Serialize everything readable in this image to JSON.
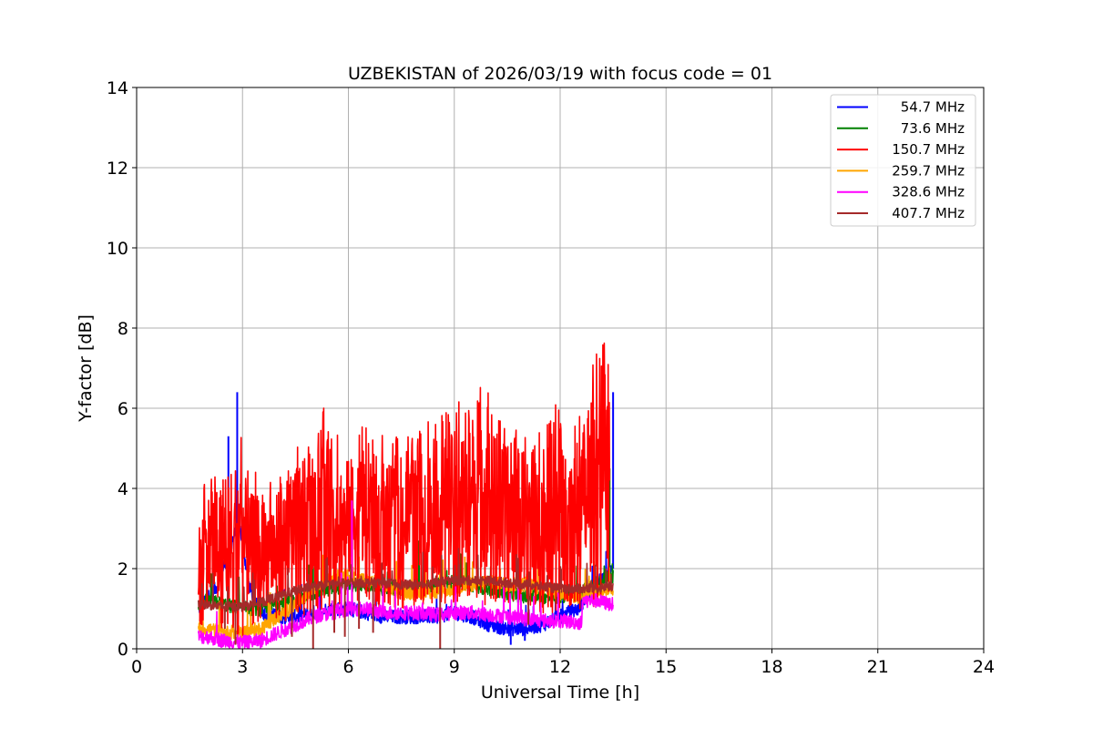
{
  "chart_data": {
    "type": "line",
    "title": "UZBEKISTAN of 2026/03/19 with focus code = 01",
    "xlabel": "Universal Time [h]",
    "ylabel": "Y-factor [dB]",
    "xlim": [
      0,
      24
    ],
    "ylim": [
      0,
      14
    ],
    "xticks": [
      0,
      3,
      6,
      9,
      12,
      15,
      18,
      21,
      24
    ],
    "yticks": [
      0,
      2,
      4,
      6,
      8,
      10,
      12,
      14
    ],
    "grid": true,
    "legend_position": "top-right",
    "series": [
      {
        "name": "54.7 MHz",
        "color": "#0000ff",
        "x": [
          1.75,
          2.0,
          2.3,
          2.6,
          2.9,
          3.2,
          3.6,
          4.0,
          4.5,
          5.0,
          5.5,
          6.0,
          6.5,
          7.0,
          7.5,
          8.0,
          8.5,
          9.0,
          9.5,
          10.0,
          10.5,
          11.0,
          11.5,
          12.0,
          12.5,
          13.0,
          13.5
        ],
        "y": [
          1.0,
          1.2,
          1.6,
          2.4,
          3.2,
          1.5,
          0.9,
          0.8,
          0.8,
          0.9,
          1.0,
          1.0,
          0.9,
          0.8,
          0.8,
          0.8,
          0.8,
          0.9,
          0.8,
          0.6,
          0.5,
          0.5,
          0.6,
          0.8,
          1.0,
          1.6,
          2.0
        ],
        "peaks": [
          [
            2.85,
            6.4
          ],
          [
            2.6,
            5.3
          ],
          [
            2.0,
            2.3
          ],
          [
            13.5,
            6.4
          ],
          [
            5.6,
            2.2
          ]
        ],
        "dips": [
          [
            10.6,
            0.1
          ],
          [
            11.0,
            0.2
          ]
        ]
      },
      {
        "name": "73.6 MHz",
        "color": "#008000",
        "x": [
          1.75,
          2.0,
          2.5,
          3.0,
          3.5,
          4.0,
          4.5,
          5.0,
          5.5,
          6.0,
          6.5,
          7.0,
          7.5,
          8.0,
          8.5,
          9.0,
          9.5,
          10.0,
          10.5,
          11.0,
          11.5,
          12.0,
          12.5,
          13.0,
          13.5
        ],
        "y": [
          1.1,
          1.2,
          1.1,
          1.0,
          1.0,
          1.1,
          1.2,
          1.4,
          1.5,
          1.6,
          1.6,
          1.5,
          1.5,
          1.5,
          1.6,
          1.7,
          1.6,
          1.5,
          1.4,
          1.3,
          1.3,
          1.3,
          1.4,
          1.6,
          1.8
        ],
        "peaks": [
          [
            2.0,
            2.2
          ],
          [
            5.0,
            2.6
          ],
          [
            8.0,
            2.7
          ],
          [
            9.0,
            2.6
          ],
          [
            13.4,
            4.5
          ]
        ],
        "dips": [
          [
            2.8,
            0.4
          ]
        ]
      },
      {
        "name": "150.7 MHz",
        "color": "#ff0000",
        "x": [
          1.75,
          2.0,
          2.3,
          2.6,
          2.9,
          3.2,
          3.5,
          3.8,
          4.1,
          4.4,
          4.7,
          5.0,
          5.3,
          5.6,
          5.9,
          6.2,
          6.5,
          6.8,
          7.1,
          7.4,
          7.7,
          8.0,
          8.3,
          8.6,
          8.9,
          9.2,
          9.5,
          9.8,
          10.1,
          10.4,
          10.7,
          11.0,
          11.3,
          11.6,
          11.9,
          12.2,
          12.5,
          12.8,
          13.1,
          13.4
        ],
        "y": [
          1.2,
          1.6,
          2.3,
          2.6,
          2.8,
          2.6,
          2.4,
          2.2,
          2.2,
          2.3,
          2.4,
          2.6,
          2.8,
          3.0,
          2.9,
          2.9,
          3.0,
          3.0,
          2.8,
          2.7,
          2.7,
          2.8,
          2.9,
          3.0,
          3.1,
          3.2,
          3.2,
          3.1,
          3.0,
          2.9,
          2.9,
          2.8,
          2.8,
          2.8,
          2.9,
          3.0,
          3.1,
          3.3,
          3.4,
          3.6
        ],
        "upper_envelope": [
          3.4,
          4.5,
          4.6,
          4.9,
          5.7,
          4.5,
          4.4,
          4.3,
          4.6,
          4.8,
          5.7,
          4.9,
          6.3,
          5.4,
          5.3,
          5.5,
          5.7,
          5.5,
          5.2,
          5.3,
          5.4,
          5.5,
          5.8,
          6.0,
          6.1,
          6.4,
          6.2,
          7.0,
          6.2,
          5.7,
          5.8,
          5.6,
          5.4,
          5.6,
          6.2,
          5.3,
          6.2,
          6.4,
          8.0,
          7.3
        ],
        "lower_envelope": [
          0.6,
          0.5,
          0.4,
          0.4,
          0.3,
          0.4,
          0.5,
          0.5,
          0.6,
          0.7,
          0.8,
          0.9,
          1.0,
          1.0,
          1.1,
          1.1,
          1.1,
          1.0,
          1.0,
          1.0,
          1.0,
          1.1,
          1.1,
          1.1,
          1.1,
          1.2,
          1.2,
          1.1,
          1.1,
          1.0,
          1.0,
          1.0,
          0.9,
          0.9,
          0.9,
          1.0,
          1.0,
          1.0,
          1.1,
          1.2
        ]
      },
      {
        "name": "259.7 MHz",
        "color": "#ffa500",
        "x": [
          1.75,
          2.0,
          2.5,
          3.0,
          3.5,
          4.0,
          4.5,
          5.0,
          5.5,
          6.0,
          6.5,
          7.0,
          7.5,
          8.0,
          8.5,
          9.0,
          9.5,
          10.0,
          10.5,
          11.0,
          11.5,
          12.0,
          12.5,
          13.0,
          13.5
        ],
        "y": [
          0.5,
          0.5,
          0.4,
          0.4,
          0.5,
          0.8,
          1.1,
          1.5,
          1.8,
          1.8,
          1.7,
          1.6,
          1.4,
          1.4,
          1.4,
          1.5,
          1.6,
          1.7,
          1.6,
          1.6,
          1.5,
          1.4,
          1.3,
          1.4,
          1.5
        ],
        "peaks": [
          [
            6.3,
            2.3
          ],
          [
            9.3,
            2.3
          ],
          [
            10.3,
            2.0
          ]
        ],
        "dips": []
      },
      {
        "name": "328.6 MHz",
        "color": "#ff00ff",
        "x": [
          1.75,
          2.0,
          2.5,
          3.0,
          3.5,
          4.0,
          4.5,
          5.0,
          5.5,
          6.0,
          6.5,
          7.0,
          7.5,
          8.0,
          8.5,
          9.0,
          9.5,
          10.0,
          10.5,
          11.0,
          11.5,
          12.0,
          12.6,
          12.65,
          13.0,
          13.5
        ],
        "y": [
          0.3,
          0.3,
          0.2,
          0.15,
          0.2,
          0.4,
          0.6,
          0.8,
          0.9,
          1.0,
          1.0,
          0.9,
          0.9,
          0.9,
          0.85,
          0.9,
          0.9,
          0.85,
          0.8,
          0.75,
          0.7,
          0.7,
          0.65,
          1.2,
          1.2,
          1.1
        ],
        "peaks": [
          [
            6.1,
            3.7
          ],
          [
            5.8,
            1.9
          ]
        ],
        "dips": []
      },
      {
        "name": "407.7 MHz",
        "color": "#a52a2a",
        "x": [
          1.75,
          2.0,
          2.5,
          3.0,
          3.5,
          4.0,
          4.5,
          5.0,
          5.5,
          6.0,
          6.5,
          7.0,
          7.5,
          8.0,
          8.5,
          9.0,
          9.5,
          10.0,
          10.5,
          11.0,
          11.5,
          12.0,
          12.5,
          13.0,
          13.5
        ],
        "y": [
          1.1,
          1.1,
          1.05,
          1.05,
          1.15,
          1.3,
          1.45,
          1.55,
          1.6,
          1.65,
          1.65,
          1.65,
          1.6,
          1.6,
          1.65,
          1.7,
          1.7,
          1.7,
          1.65,
          1.6,
          1.55,
          1.5,
          1.5,
          1.5,
          1.55
        ],
        "peaks": [],
        "dips": [
          [
            2.5,
            0.5
          ],
          [
            2.8,
            0.1
          ],
          [
            4.4,
            0.3
          ],
          [
            5.0,
            0.0
          ],
          [
            5.6,
            0.4
          ],
          [
            5.9,
            0.3
          ],
          [
            6.3,
            0.5
          ],
          [
            6.7,
            0.4
          ],
          [
            8.6,
            0.0
          ],
          [
            11.1,
            0.6
          ]
        ]
      }
    ]
  }
}
